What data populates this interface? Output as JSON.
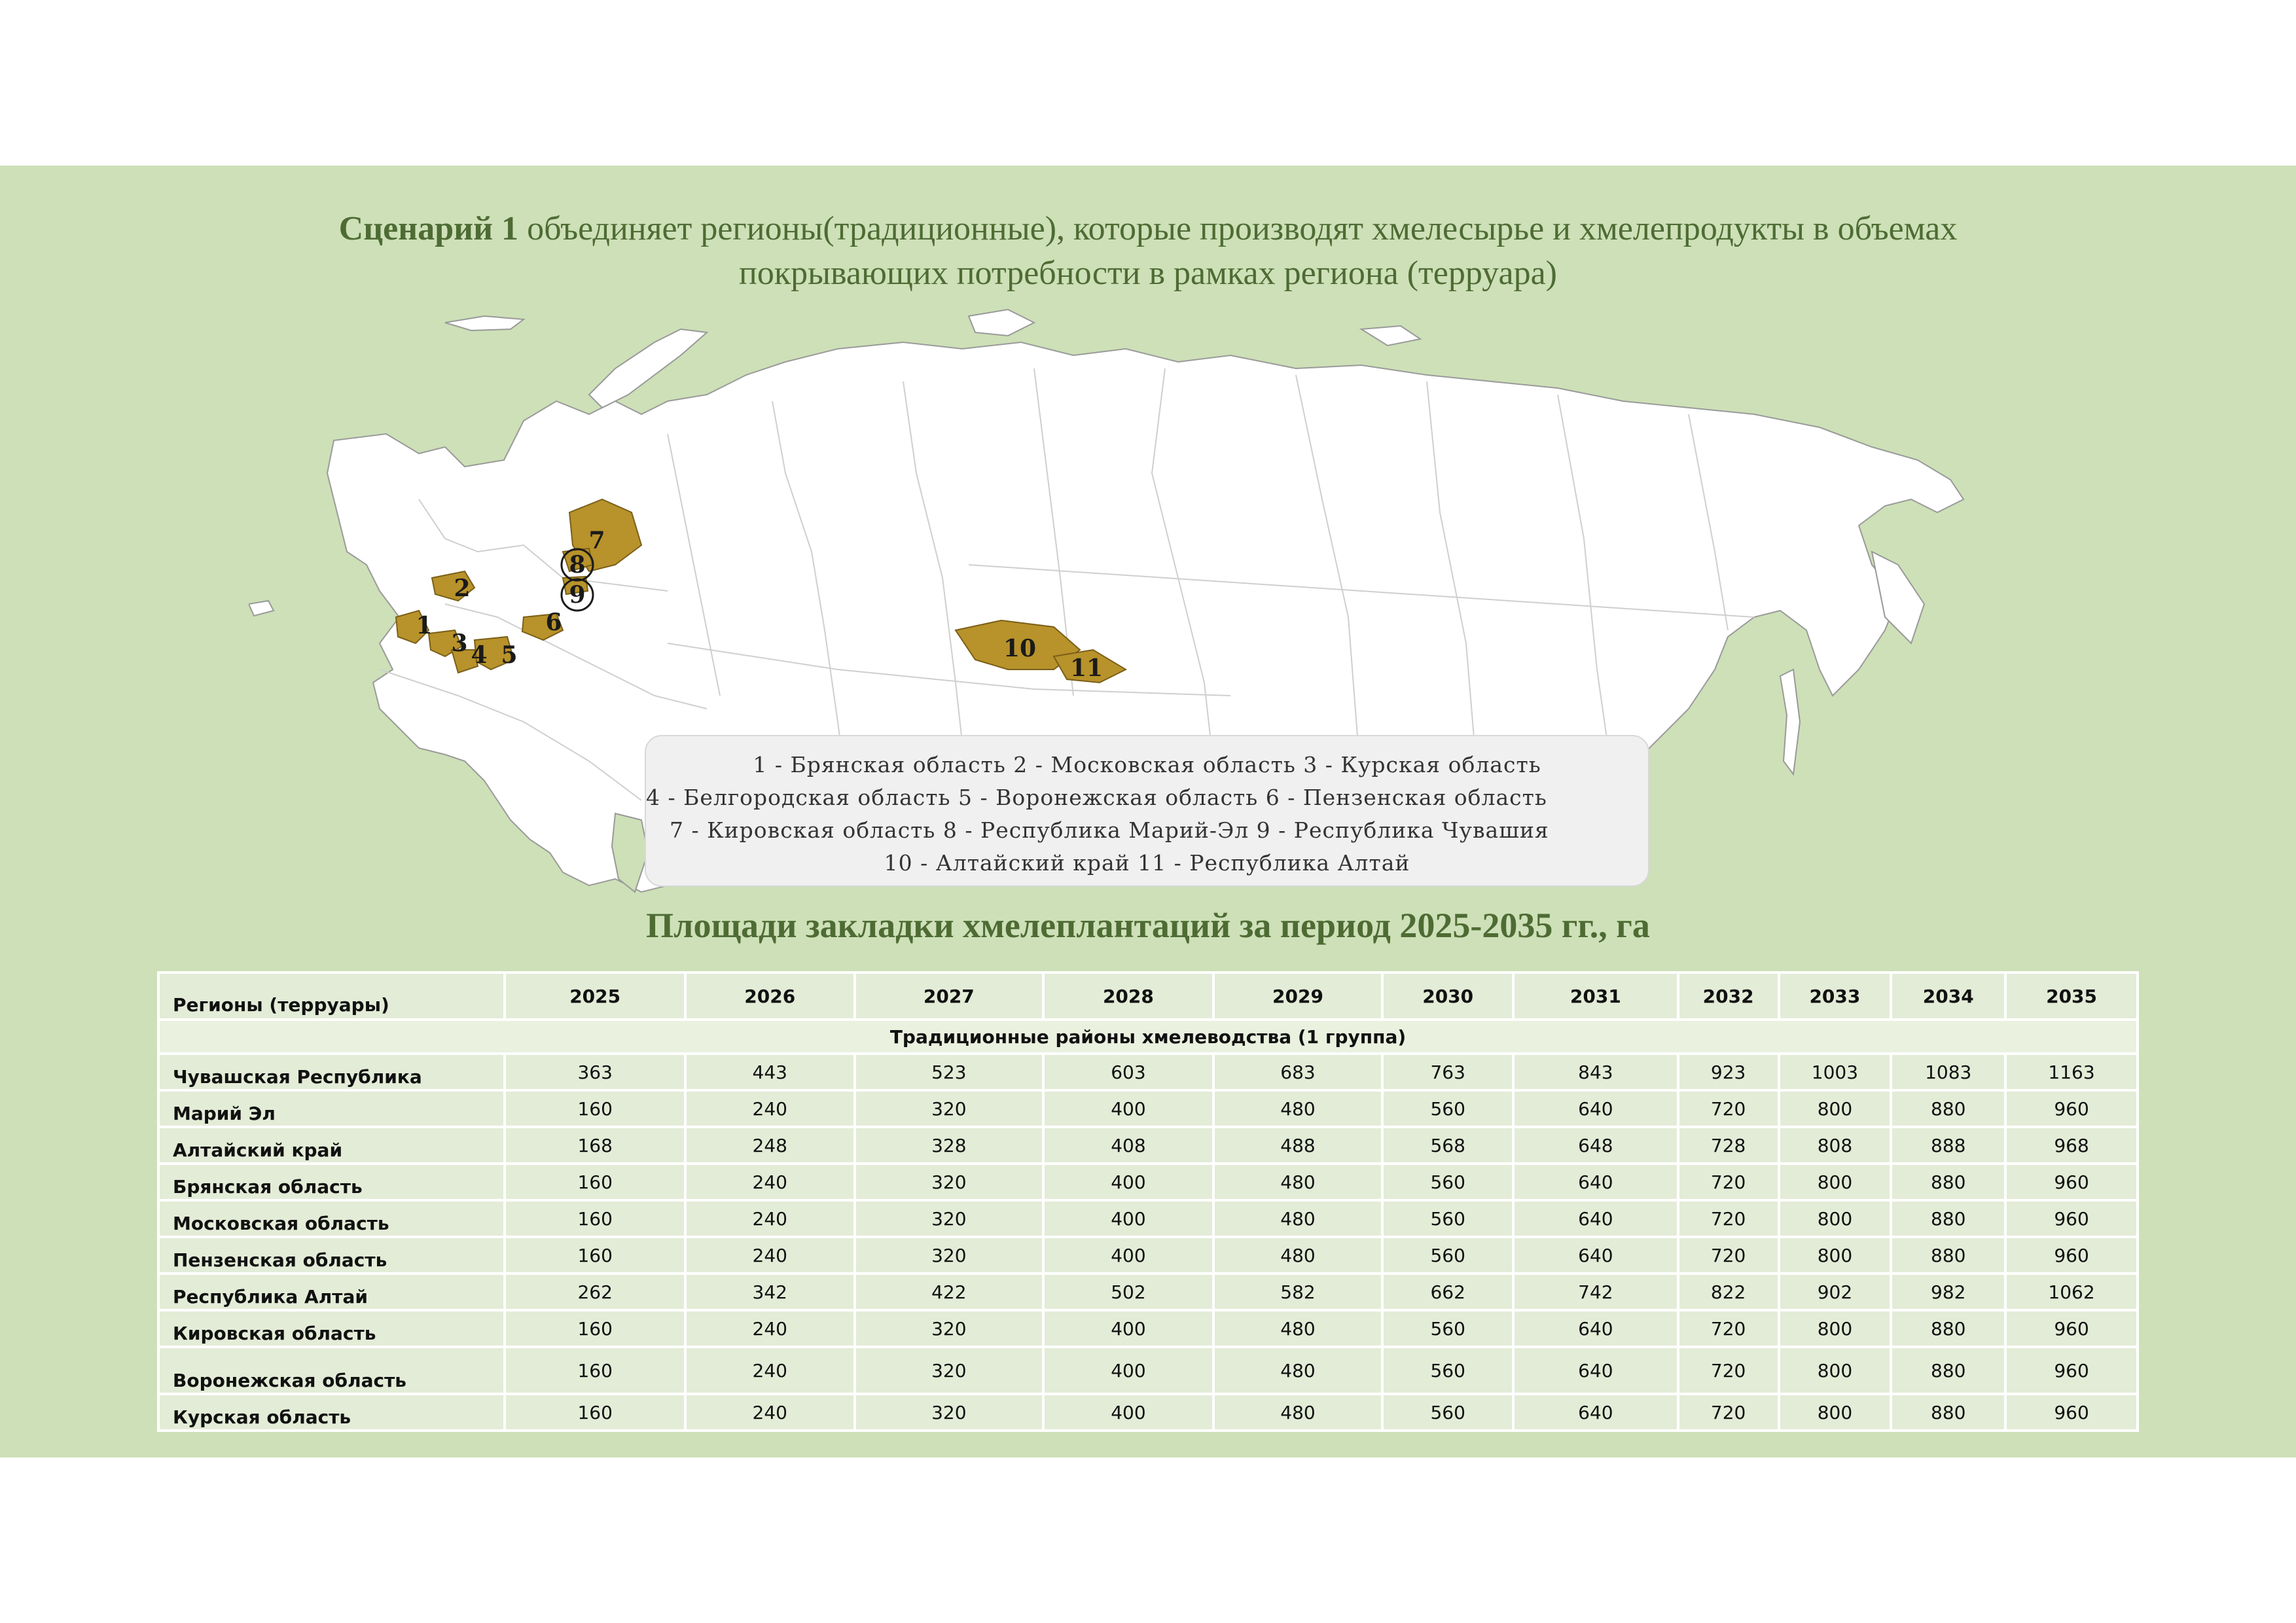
{
  "title": {
    "bold": "Сценарий 1",
    "rest_line1": " объединяет регионы(традиционные), которые производят хмелесырье и хмелепродукты  в объемах",
    "line2": "покрывающих потребности  в рамках региона (терруара)"
  },
  "map": {
    "highlight_color": "#b8922a",
    "markers": [
      "1",
      "2",
      "3",
      "4",
      "5",
      "6",
      "7",
      "8",
      "9",
      "10",
      "11"
    ]
  },
  "legend": {
    "line1": "1 - Брянская область 2 - Московская область 3 - Курская область",
    "line2": "4 - Белгородская область 5 - Воронежская область 6 - Пензенская область",
    "line3": "7 - Кировская область 8 - Республика Марий-Эл 9 - Республика Чувашия",
    "line4": "10 - Алтайский край 11 - Республика Алтай"
  },
  "table_title": "Площади закладки хмелеплантаций за период 2025-2035 гг., га",
  "table": {
    "region_header": "Регионы (терруары)",
    "years": [
      "2025",
      "2026",
      "2027",
      "2028",
      "2029",
      "2030",
      "2031",
      "2032",
      "2033",
      "2034",
      "2035"
    ],
    "group_label": "Традиционные районы хмелеводства (1 группа)",
    "rows": [
      {
        "region": "Чувашская Республика",
        "values": [
          "363",
          "443",
          "523",
          "603",
          "683",
          "763",
          "843",
          "923",
          "1003",
          "1083",
          "1163"
        ]
      },
      {
        "region": "Марий Эл",
        "values": [
          "160",
          "240",
          "320",
          "400",
          "480",
          "560",
          "640",
          "720",
          "800",
          "880",
          "960"
        ]
      },
      {
        "region": "Алтайский край",
        "values": [
          "168",
          "248",
          "328",
          "408",
          "488",
          "568",
          "648",
          "728",
          "808",
          "888",
          "968"
        ]
      },
      {
        "region": "Брянская область",
        "values": [
          "160",
          "240",
          "320",
          "400",
          "480",
          "560",
          "640",
          "720",
          "800",
          "880",
          "960"
        ]
      },
      {
        "region": "Московская область",
        "values": [
          "160",
          "240",
          "320",
          "400",
          "480",
          "560",
          "640",
          "720",
          "800",
          "880",
          "960"
        ]
      },
      {
        "region": "Пензенская область",
        "values": [
          "160",
          "240",
          "320",
          "400",
          "480",
          "560",
          "640",
          "720",
          "800",
          "880",
          "960"
        ]
      },
      {
        "region": "Республика Алтай",
        "values": [
          "262",
          "342",
          "422",
          "502",
          "582",
          "662",
          "742",
          "822",
          "902",
          "982",
          "1062"
        ]
      },
      {
        "region": "Кировская область",
        "values": [
          "160",
          "240",
          "320",
          "400",
          "480",
          "560",
          "640",
          "720",
          "800",
          "880",
          "960"
        ]
      },
      {
        "region": "Воронежская область",
        "values": [
          "160",
          "240",
          "320",
          "400",
          "480",
          "560",
          "640",
          "720",
          "800",
          "880",
          "960"
        ]
      },
      {
        "region": "Курская область",
        "values": [
          "160",
          "240",
          "320",
          "400",
          "480",
          "560",
          "640",
          "720",
          "800",
          "880",
          "960"
        ]
      }
    ]
  }
}
